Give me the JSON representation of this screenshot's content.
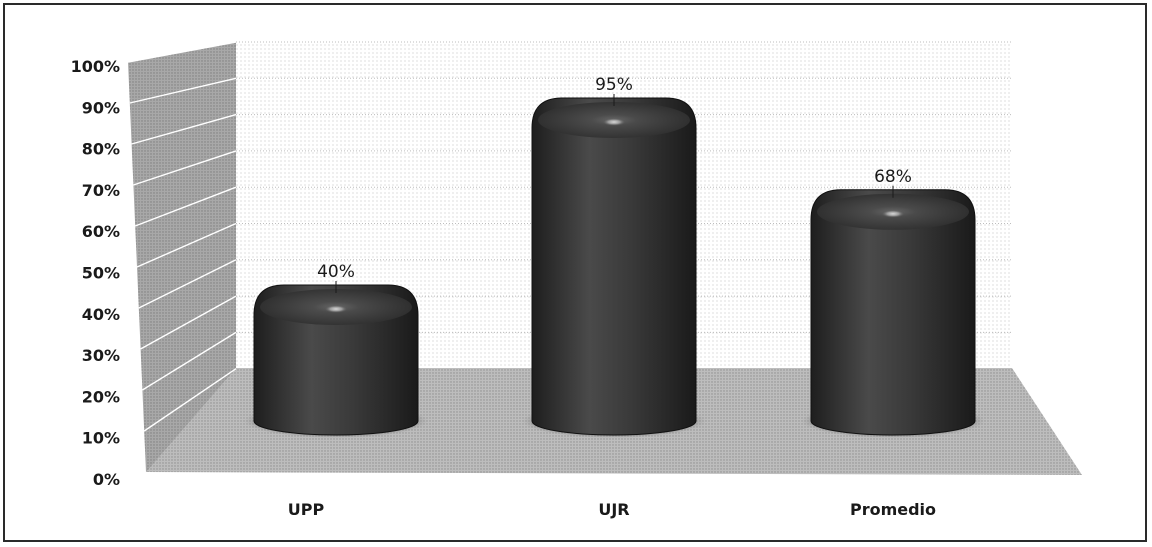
{
  "chart_data": {
    "type": "bar",
    "categories": [
      "UPP",
      "UJR",
      "Promedio"
    ],
    "values": [
      40,
      95,
      68
    ],
    "data_labels": [
      "40%",
      "95%",
      "68%"
    ],
    "ylim": [
      0,
      100
    ],
    "yticks": [
      "0%",
      "10%",
      "20%",
      "30%",
      "40%",
      "50%",
      "60%",
      "70%",
      "80%",
      "90%",
      "100%"
    ],
    "title": "",
    "xlabel": "",
    "ylabel": "",
    "grid": true,
    "legend": "none",
    "style": "3d-cylinder",
    "colors": {
      "bar": "#3a3a3a",
      "wall": "#9a9a9a",
      "floor": "#b4b4b4"
    }
  }
}
